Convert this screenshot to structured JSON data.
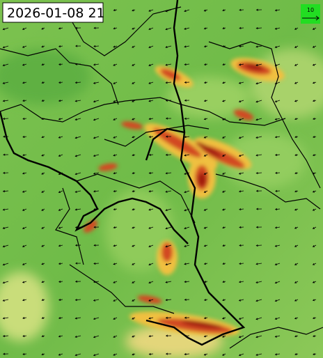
{
  "timestamp": "2026-01-08 21",
  "legend": {
    "label": "10"
  }
}
